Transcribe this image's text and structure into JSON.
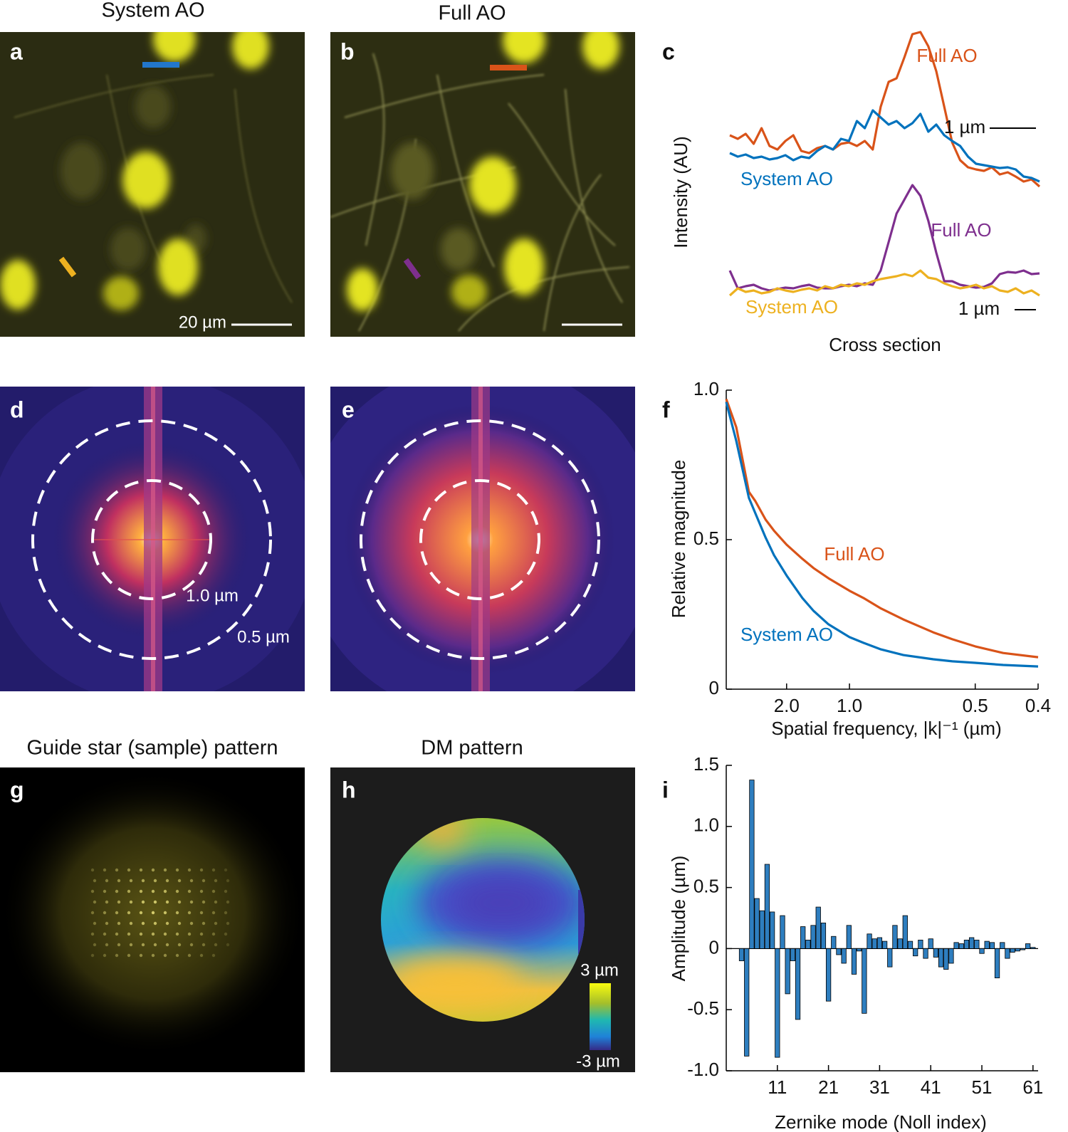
{
  "panel_labels": [
    "a",
    "b",
    "c",
    "d",
    "e",
    "f",
    "g",
    "h",
    "i"
  ],
  "titles": {
    "system_ao": "System AO",
    "full_ao": "Full AO",
    "guide_star": "Guide star (sample) pattern",
    "dm": "DM pattern"
  },
  "images": {
    "a_scale_bar": "20 µm",
    "d_ring_inner": "1.0 µm",
    "d_ring_outer": "0.5 µm",
    "h_colorbar_max": "3 µm",
    "h_colorbar_min": "-3 µm"
  },
  "chart_data": [
    {
      "type": "line",
      "y_label": "Intensity (AU)",
      "x_label": "Cross section",
      "annotations": [
        "1 µm",
        "1 µm"
      ],
      "series": [
        {
          "name": "Full AO",
          "color": "#d95319",
          "values": [
            270,
            265,
            272,
            258,
            280,
            255,
            250,
            262,
            270,
            248,
            245,
            252,
            255,
            250,
            258,
            260,
            255,
            262,
            250,
            310,
            345,
            350,
            380,
            412,
            415,
            395,
            360,
            310,
            260,
            235,
            225,
            222,
            220,
            225,
            215,
            218,
            212,
            205,
            208,
            198
          ]
        },
        {
          "name": "System AO",
          "color": "#0072bd",
          "values": [
            245,
            240,
            243,
            238,
            240,
            236,
            238,
            242,
            235,
            240,
            238,
            248,
            255,
            250,
            265,
            262,
            290,
            280,
            305,
            295,
            285,
            290,
            280,
            287,
            300,
            275,
            285,
            270,
            262,
            255,
            240,
            230,
            228,
            226,
            224,
            225,
            222,
            212,
            210,
            205
          ]
        },
        {
          "name": "Full AO",
          "color": "#7e2f8e",
          "values": [
            80,
            55,
            58,
            60,
            55,
            52,
            54,
            56,
            55,
            58,
            60,
            56,
            55,
            55,
            58,
            60,
            58,
            62,
            60,
            80,
            120,
            160,
            180,
            200,
            185,
            150,
            105,
            65,
            65,
            60,
            58,
            56,
            57,
            62,
            75,
            78,
            77,
            80,
            75,
            76
          ]
        },
        {
          "name": "System AO",
          "color": "#edb120",
          "values": [
            45,
            55,
            50,
            52,
            48,
            50,
            55,
            52,
            50,
            53,
            55,
            52,
            58,
            55,
            60,
            58,
            62,
            60,
            65,
            68,
            70,
            72,
            75,
            72,
            80,
            70,
            68,
            62,
            58,
            55,
            57,
            60,
            55,
            58,
            52,
            50,
            55,
            48,
            52,
            45
          ]
        }
      ]
    },
    {
      "type": "line",
      "y_label": "Relative magnitude",
      "x_label": "Spatial frequency, |k|⁻¹ (µm)",
      "xscale": "reciprocal",
      "xlim": [
        50,
        0.4
      ],
      "xticks": [
        {
          "value": 2,
          "label": "2.0"
        },
        {
          "value": 1,
          "label": "1.0"
        },
        0.5,
        0.4
      ],
      "ylim": [
        0,
        1
      ],
      "yticks": [
        0,
        0.5,
        {
          "value": 1,
          "label": "1.0"
        }
      ],
      "x": [
        50,
        10,
        5,
        4,
        3,
        2.5,
        2,
        1.6,
        1.4,
        1.2,
        1,
        0.9,
        0.8,
        0.7,
        0.6,
        0.55,
        0.5,
        0.45,
        0.4
      ],
      "series": [
        {
          "name": "Full AO",
          "color": "#d95319",
          "values": [
            0.97,
            0.876,
            0.66,
            0.63,
            0.567,
            0.53,
            0.483,
            0.436,
            0.405,
            0.371,
            0.329,
            0.305,
            0.27,
            0.233,
            0.19,
            0.167,
            0.143,
            0.121,
            0.107
          ]
        },
        {
          "name": "System AO",
          "color": "#0072bd",
          "values": [
            0.96,
            0.83,
            0.64,
            0.59,
            0.507,
            0.448,
            0.38,
            0.305,
            0.262,
            0.217,
            0.174,
            0.155,
            0.133,
            0.114,
            0.1,
            0.093,
            0.088,
            0.081,
            0.076
          ]
        }
      ]
    },
    {
      "type": "bar",
      "x_label": "Zernike mode (Noll index)",
      "y_label": "Amplitude (µm)",
      "color": "#2e7ebf",
      "xlim": [
        1,
        62
      ],
      "xticks": [
        11,
        21,
        31,
        41,
        51,
        61
      ],
      "ylim": [
        -1,
        1.5
      ],
      "yticks": [
        {
          "value": -1,
          "label": "-1.0"
        },
        -0.5,
        0,
        0.5,
        {
          "value": 1,
          "label": "1.0"
        },
        1.5
      ],
      "x": [
        4,
        5,
        6,
        7,
        8,
        9,
        10,
        11,
        12,
        13,
        14,
        15,
        16,
        17,
        18,
        19,
        20,
        21,
        22,
        23,
        24,
        25,
        26,
        27,
        28,
        29,
        30,
        31,
        32,
        33,
        34,
        35,
        36,
        37,
        38,
        39,
        40,
        41,
        42,
        43,
        44,
        45,
        46,
        47,
        48,
        49,
        50,
        51,
        52,
        53,
        54,
        55,
        56,
        57,
        58,
        59,
        60,
        61
      ],
      "values": [
        -0.1,
        -0.88,
        1.38,
        0.41,
        0.31,
        0.69,
        0.3,
        -0.89,
        0.27,
        -0.37,
        -0.1,
        -0.58,
        0.18,
        0.07,
        0.19,
        0.34,
        0.21,
        -0.43,
        0.1,
        -0.05,
        -0.12,
        0.19,
        -0.21,
        -0.02,
        -0.53,
        0.12,
        0.08,
        0.09,
        0.06,
        -0.15,
        0.19,
        0.08,
        0.27,
        0.06,
        -0.06,
        0.07,
        -0.08,
        0.08,
        -0.07,
        -0.15,
        -0.17,
        -0.12,
        0.05,
        0.04,
        0.07,
        0.09,
        0.07,
        -0.04,
        0.06,
        0.05,
        -0.24,
        0.05,
        -0.08,
        -0.03,
        -0.02,
        -0.01,
        0.04,
        0.01
      ]
    }
  ]
}
